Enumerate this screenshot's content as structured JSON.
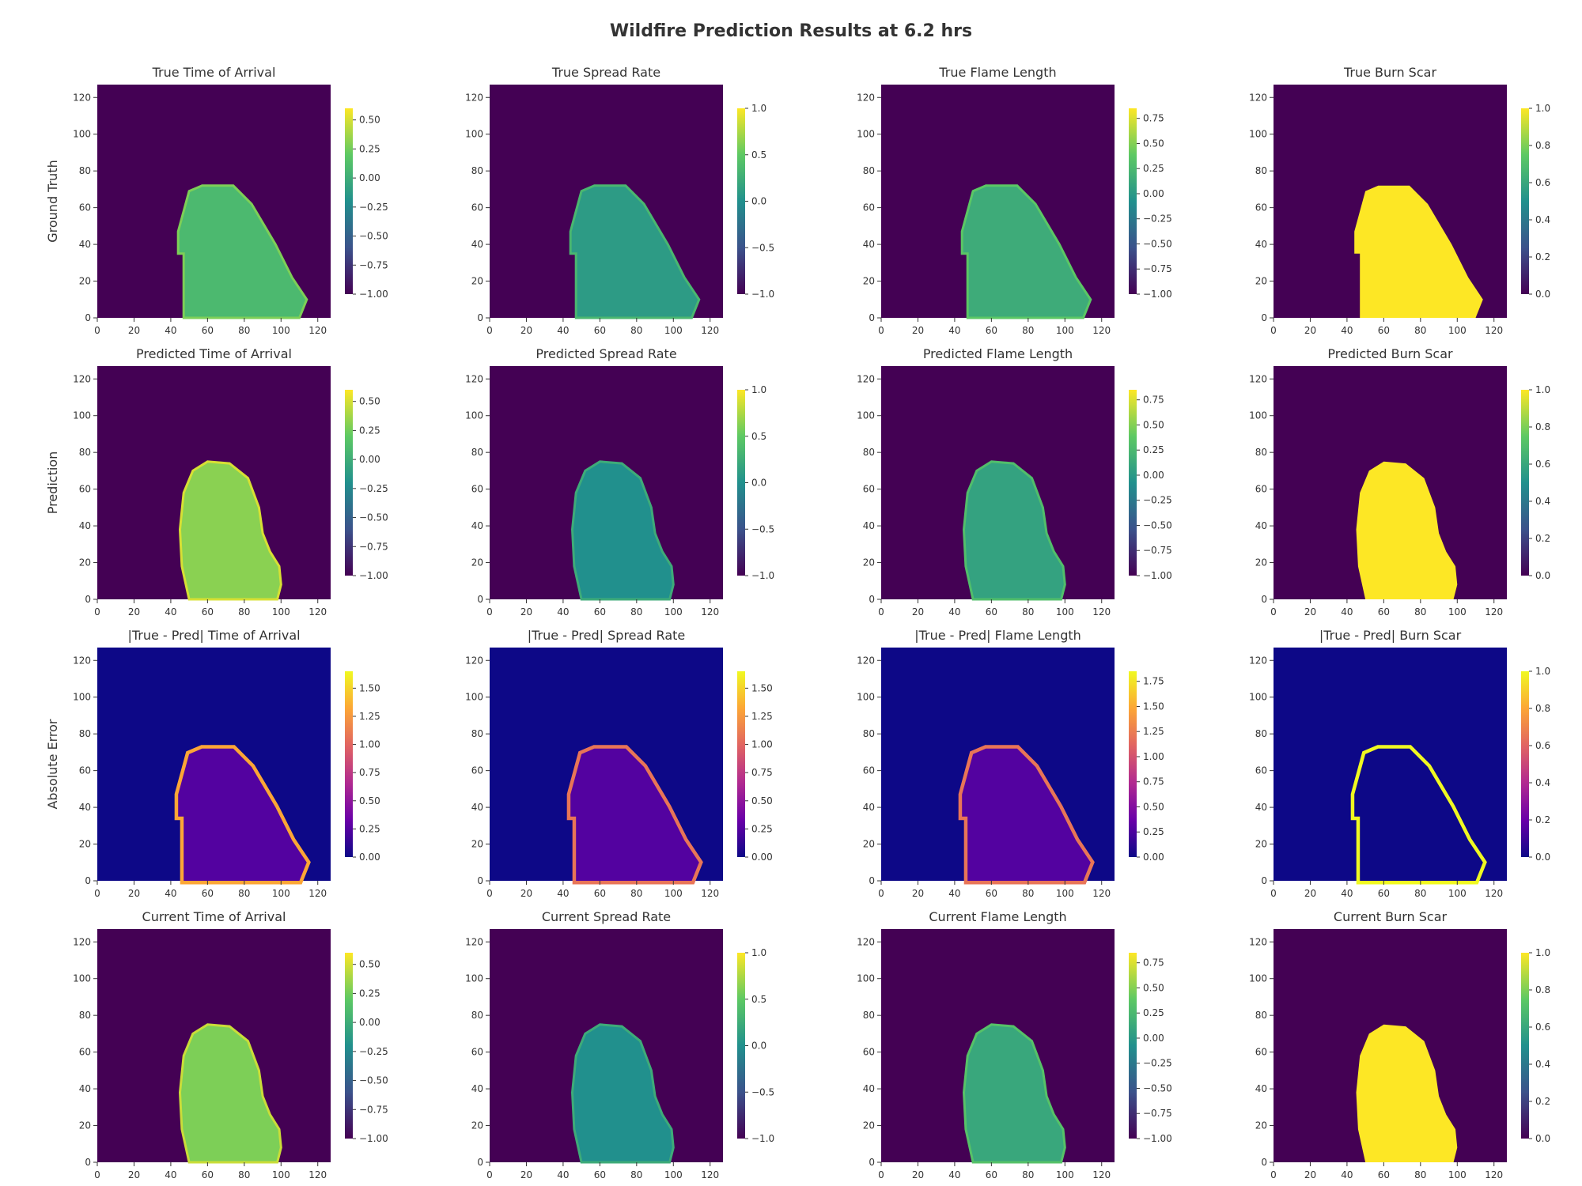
{
  "title": "Wildfire Prediction Results at 6.2 hrs",
  "row_labels": [
    "Ground Truth",
    "Prediction",
    "Absolute Error",
    ""
  ],
  "colors": {
    "viridis_stops": [
      "#440154",
      "#3b528b",
      "#21908d",
      "#5dc963",
      "#fde725"
    ],
    "plasma_stops": [
      "#0d0887",
      "#6a00a8",
      "#b12a90",
      "#e16462",
      "#fca636",
      "#f0f921"
    ],
    "background_viridis": "#440154",
    "background_plasma": "#0d0887"
  },
  "chart_data": [
    {
      "type": "heatmap",
      "title": "True Time of Arrival",
      "colormap": "viridis",
      "xlim": [
        0,
        127
      ],
      "ylim": [
        0,
        127
      ],
      "x_ticks": [
        0,
        20,
        40,
        60,
        80,
        100,
        120
      ],
      "y_ticks": [
        0,
        20,
        40,
        60,
        80,
        100,
        120
      ],
      "colorbar_range": [
        -1.0,
        0.6
      ],
      "colorbar_ticks": [
        -1.0,
        -0.75,
        -0.5,
        -0.25,
        0.0,
        0.25,
        0.5
      ],
      "colorbar_tick_labels": [
        "−1.00",
        "−0.75",
        "−0.50",
        "−0.25",
        "0.00",
        "0.25",
        "0.50"
      ],
      "shape": "truth",
      "fill_level": 0.68
    },
    {
      "type": "heatmap",
      "title": "True Spread Rate",
      "colormap": "viridis",
      "xlim": [
        0,
        127
      ],
      "ylim": [
        0,
        127
      ],
      "x_ticks": [
        0,
        20,
        40,
        60,
        80,
        100,
        120
      ],
      "y_ticks": [
        0,
        20,
        40,
        60,
        80,
        100,
        120
      ],
      "colorbar_range": [
        -1.0,
        1.0
      ],
      "colorbar_ticks": [
        -1.0,
        -0.5,
        0.0,
        0.5,
        1.0
      ],
      "colorbar_tick_labels": [
        "−1.0",
        "−0.5",
        "0.0",
        "0.5",
        "1.0"
      ],
      "shape": "truth",
      "fill_level": 0.55
    },
    {
      "type": "heatmap",
      "title": "True Flame Length",
      "colormap": "viridis",
      "xlim": [
        0,
        127
      ],
      "ylim": [
        0,
        127
      ],
      "x_ticks": [
        0,
        20,
        40,
        60,
        80,
        100,
        120
      ],
      "y_ticks": [
        0,
        20,
        40,
        60,
        80,
        100,
        120
      ],
      "colorbar_range": [
        -1.0,
        0.85
      ],
      "colorbar_ticks": [
        -1.0,
        -0.75,
        -0.5,
        -0.25,
        0.0,
        0.25,
        0.5,
        0.75
      ],
      "colorbar_tick_labels": [
        "−1.00",
        "−0.75",
        "−0.50",
        "−0.25",
        "0.00",
        "0.25",
        "0.50",
        "0.75"
      ],
      "shape": "truth",
      "fill_level": 0.62
    },
    {
      "type": "heatmap",
      "title": "True Burn Scar",
      "colormap": "viridis",
      "xlim": [
        0,
        127
      ],
      "ylim": [
        0,
        127
      ],
      "x_ticks": [
        0,
        20,
        40,
        60,
        80,
        100,
        120
      ],
      "y_ticks": [
        0,
        20,
        40,
        60,
        80,
        100,
        120
      ],
      "colorbar_range": [
        0.0,
        1.0
      ],
      "colorbar_ticks": [
        0.0,
        0.2,
        0.4,
        0.6,
        0.8,
        1.0
      ],
      "colorbar_tick_labels": [
        "0.0",
        "0.2",
        "0.4",
        "0.6",
        "0.8",
        "1.0"
      ],
      "shape": "truth",
      "fill_level": 1.0
    },
    {
      "type": "heatmap",
      "title": "Predicted Time of Arrival",
      "colormap": "viridis",
      "xlim": [
        0,
        127
      ],
      "ylim": [
        0,
        127
      ],
      "x_ticks": [
        0,
        20,
        40,
        60,
        80,
        100,
        120
      ],
      "y_ticks": [
        0,
        20,
        40,
        60,
        80,
        100,
        120
      ],
      "colorbar_range": [
        -1.0,
        0.6
      ],
      "colorbar_ticks": [
        -1.0,
        -0.75,
        -0.5,
        -0.25,
        0.0,
        0.25,
        0.5
      ],
      "colorbar_tick_labels": [
        "−1.00",
        "−0.75",
        "−0.50",
        "−0.25",
        "0.00",
        "0.25",
        "0.50"
      ],
      "shape": "pred",
      "fill_level": 0.82
    },
    {
      "type": "heatmap",
      "title": "Predicted Spread Rate",
      "colormap": "viridis",
      "xlim": [
        0,
        127
      ],
      "ylim": [
        0,
        127
      ],
      "x_ticks": [
        0,
        20,
        40,
        60,
        80,
        100,
        120
      ],
      "y_ticks": [
        0,
        20,
        40,
        60,
        80,
        100,
        120
      ],
      "colorbar_range": [
        -1.0,
        1.0
      ],
      "colorbar_ticks": [
        -1.0,
        -0.5,
        0.0,
        0.5,
        1.0
      ],
      "colorbar_tick_labels": [
        "−1.0",
        "−0.5",
        "0.0",
        "0.5",
        "1.0"
      ],
      "shape": "pred",
      "fill_level": 0.5
    },
    {
      "type": "heatmap",
      "title": "Predicted Flame Length",
      "colormap": "viridis",
      "xlim": [
        0,
        127
      ],
      "ylim": [
        0,
        127
      ],
      "x_ticks": [
        0,
        20,
        40,
        60,
        80,
        100,
        120
      ],
      "y_ticks": [
        0,
        20,
        40,
        60,
        80,
        100,
        120
      ],
      "colorbar_range": [
        -1.0,
        0.85
      ],
      "colorbar_ticks": [
        -1.0,
        -0.75,
        -0.5,
        -0.25,
        0.0,
        0.25,
        0.5,
        0.75
      ],
      "colorbar_tick_labels": [
        "−1.00",
        "−0.75",
        "−0.50",
        "−0.25",
        "0.00",
        "0.25",
        "0.50",
        "0.75"
      ],
      "shape": "pred",
      "fill_level": 0.58
    },
    {
      "type": "heatmap",
      "title": "Predicted Burn Scar",
      "colormap": "viridis",
      "xlim": [
        0,
        127
      ],
      "ylim": [
        0,
        127
      ],
      "x_ticks": [
        0,
        20,
        40,
        60,
        80,
        100,
        120
      ],
      "y_ticks": [
        0,
        20,
        40,
        60,
        80,
        100,
        120
      ],
      "colorbar_range": [
        0.0,
        1.0
      ],
      "colorbar_ticks": [
        0.0,
        0.2,
        0.4,
        0.6,
        0.8,
        1.0
      ],
      "colorbar_tick_labels": [
        "0.0",
        "0.2",
        "0.4",
        "0.6",
        "0.8",
        "1.0"
      ],
      "shape": "pred",
      "fill_level": 1.0
    },
    {
      "type": "heatmap",
      "title": "|True - Pred| Time of Arrival",
      "colormap": "plasma",
      "xlim": [
        0,
        127
      ],
      "ylim": [
        0,
        127
      ],
      "x_ticks": [
        0,
        20,
        40,
        60,
        80,
        100,
        120
      ],
      "y_ticks": [
        0,
        20,
        40,
        60,
        80,
        100,
        120
      ],
      "colorbar_range": [
        0.0,
        1.65
      ],
      "colorbar_ticks": [
        0.0,
        0.25,
        0.5,
        0.75,
        1.0,
        1.25,
        1.5
      ],
      "colorbar_tick_labels": [
        "0.00",
        "0.25",
        "0.50",
        "0.75",
        "1.00",
        "1.25",
        "1.50"
      ],
      "shape": "truth",
      "fill_level": 0.15,
      "edge_level": 0.8
    },
    {
      "type": "heatmap",
      "title": "|True - Pred| Spread Rate",
      "colormap": "plasma",
      "xlim": [
        0,
        127
      ],
      "ylim": [
        0,
        127
      ],
      "x_ticks": [
        0,
        20,
        40,
        60,
        80,
        100,
        120
      ],
      "y_ticks": [
        0,
        20,
        40,
        60,
        80,
        100,
        120
      ],
      "colorbar_range": [
        0.0,
        1.65
      ],
      "colorbar_ticks": [
        0.0,
        0.25,
        0.5,
        0.75,
        1.0,
        1.25,
        1.5
      ],
      "colorbar_tick_labels": [
        "0.00",
        "0.25",
        "0.50",
        "0.75",
        "1.00",
        "1.25",
        "1.50"
      ],
      "shape": "truth",
      "fill_level": 0.15,
      "edge_level": 0.65
    },
    {
      "type": "heatmap",
      "title": "|True - Pred| Flame Length",
      "colormap": "plasma",
      "xlim": [
        0,
        127
      ],
      "ylim": [
        0,
        127
      ],
      "x_ticks": [
        0,
        20,
        40,
        60,
        80,
        100,
        120
      ],
      "y_ticks": [
        0,
        20,
        40,
        60,
        80,
        100,
        120
      ],
      "colorbar_range": [
        0.0,
        1.85
      ],
      "colorbar_ticks": [
        0.0,
        0.25,
        0.5,
        0.75,
        1.0,
        1.25,
        1.5,
        1.75
      ],
      "colorbar_tick_labels": [
        "0.00",
        "0.25",
        "0.50",
        "0.75",
        "1.00",
        "1.25",
        "1.50",
        "1.75"
      ],
      "shape": "truth",
      "fill_level": 0.15,
      "edge_level": 0.65
    },
    {
      "type": "heatmap",
      "title": "|True - Pred| Burn Scar",
      "colormap": "plasma",
      "xlim": [
        0,
        127
      ],
      "ylim": [
        0,
        127
      ],
      "x_ticks": [
        0,
        20,
        40,
        60,
        80,
        100,
        120
      ],
      "y_ticks": [
        0,
        20,
        40,
        60,
        80,
        100,
        120
      ],
      "colorbar_range": [
        0.0,
        1.0
      ],
      "colorbar_ticks": [
        0.0,
        0.2,
        0.4,
        0.6,
        0.8,
        1.0
      ],
      "colorbar_tick_labels": [
        "0.0",
        "0.2",
        "0.4",
        "0.6",
        "0.8",
        "1.0"
      ],
      "shape": "truth",
      "fill_level": 0.0,
      "edge_level": 1.0
    },
    {
      "type": "heatmap",
      "title": "Current Time of Arrival",
      "colormap": "viridis",
      "xlim": [
        0,
        127
      ],
      "ylim": [
        0,
        127
      ],
      "x_ticks": [
        0,
        20,
        40,
        60,
        80,
        100,
        120
      ],
      "y_ticks": [
        0,
        20,
        40,
        60,
        80,
        100,
        120
      ],
      "colorbar_range": [
        -1.0,
        0.6
      ],
      "colorbar_ticks": [
        -1.0,
        -0.75,
        -0.5,
        -0.25,
        0.0,
        0.25,
        0.5
      ],
      "colorbar_tick_labels": [
        "−1.00",
        "−0.75",
        "−0.50",
        "−0.25",
        "0.00",
        "0.25",
        "0.50"
      ],
      "shape": "pred",
      "fill_level": 0.8
    },
    {
      "type": "heatmap",
      "title": "Current Spread Rate",
      "colormap": "viridis",
      "xlim": [
        0,
        127
      ],
      "ylim": [
        0,
        127
      ],
      "x_ticks": [
        0,
        20,
        40,
        60,
        80,
        100,
        120
      ],
      "y_ticks": [
        0,
        20,
        40,
        60,
        80,
        100,
        120
      ],
      "colorbar_range": [
        -1.0,
        1.0
      ],
      "colorbar_ticks": [
        -1.0,
        -0.5,
        0.0,
        0.5,
        1.0
      ],
      "colorbar_tick_labels": [
        "−1.0",
        "−0.5",
        "0.0",
        "0.5",
        "1.0"
      ],
      "shape": "pred",
      "fill_level": 0.5
    },
    {
      "type": "heatmap",
      "title": "Current Flame Length",
      "colormap": "viridis",
      "xlim": [
        0,
        127
      ],
      "ylim": [
        0,
        127
      ],
      "x_ticks": [
        0,
        20,
        40,
        60,
        80,
        100,
        120
      ],
      "y_ticks": [
        0,
        20,
        40,
        60,
        80,
        100,
        120
      ],
      "colorbar_range": [
        -1.0,
        0.85
      ],
      "colorbar_ticks": [
        -1.0,
        -0.75,
        -0.5,
        -0.25,
        0.0,
        0.25,
        0.5,
        0.75
      ],
      "colorbar_tick_labels": [
        "−1.00",
        "−0.75",
        "−0.50",
        "−0.25",
        "0.00",
        "0.25",
        "0.50",
        "0.75"
      ],
      "shape": "pred",
      "fill_level": 0.6
    },
    {
      "type": "heatmap",
      "title": "Current Burn Scar",
      "colormap": "viridis",
      "xlim": [
        0,
        127
      ],
      "ylim": [
        0,
        127
      ],
      "x_ticks": [
        0,
        20,
        40,
        60,
        80,
        100,
        120
      ],
      "y_ticks": [
        0,
        20,
        40,
        60,
        80,
        100,
        120
      ],
      "colorbar_range": [
        0.0,
        1.0
      ],
      "colorbar_ticks": [
        0.0,
        0.2,
        0.4,
        0.6,
        0.8,
        1.0
      ],
      "colorbar_tick_labels": [
        "0.0",
        "0.2",
        "0.4",
        "0.6",
        "0.8",
        "1.0"
      ],
      "shape": "pred",
      "fill_level": 1.0
    }
  ]
}
